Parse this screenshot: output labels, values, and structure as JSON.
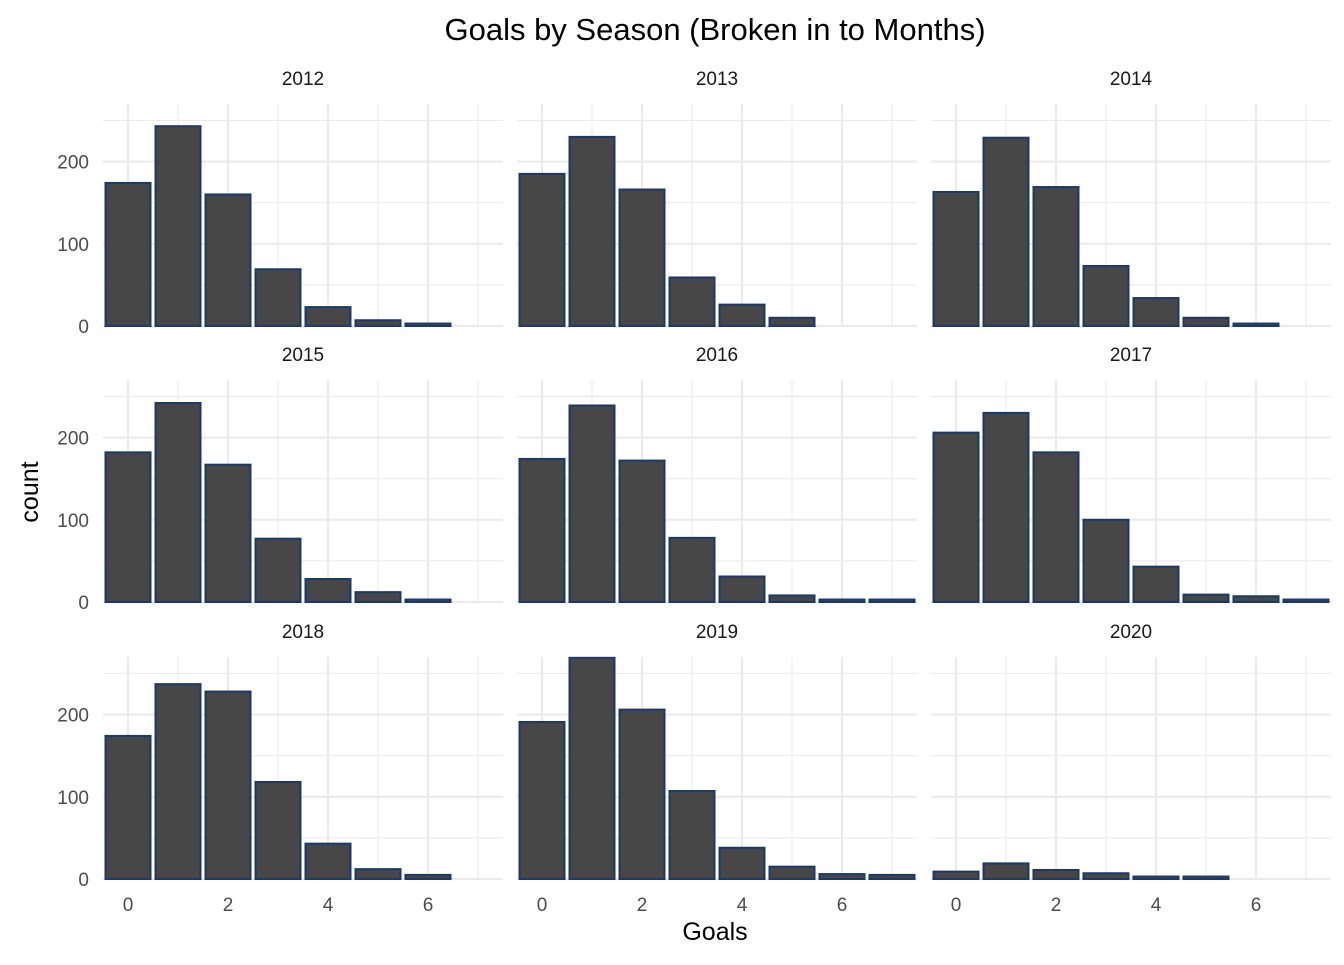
{
  "chart_data": {
    "type": "bar",
    "title": "Goals by Season (Broken in to Months)",
    "xlabel": "Goals",
    "ylabel": "count",
    "xlim": [
      -0.5,
      7.5
    ],
    "ylim": [
      0,
      270
    ],
    "x_ticks": [
      0,
      2,
      4,
      6
    ],
    "y_ticks": [
      0,
      100,
      200
    ],
    "grid": true,
    "legend": "none",
    "colors": {
      "bar_fill": "#474747",
      "bar_outline": "#1b3a6b",
      "grid": "#ebebeb",
      "background": "#ffffff"
    },
    "panels": [
      {
        "label": "2012",
        "x": [
          0,
          1,
          2,
          3,
          4,
          5,
          6
        ],
        "values": [
          174,
          243,
          160,
          69,
          23,
          7,
          3
        ]
      },
      {
        "label": "2013",
        "x": [
          0,
          1,
          2,
          3,
          4,
          5
        ],
        "values": [
          185,
          230,
          166,
          59,
          26,
          10
        ]
      },
      {
        "label": "2014",
        "x": [
          0,
          1,
          2,
          3,
          4,
          5,
          6
        ],
        "values": [
          163,
          229,
          169,
          73,
          34,
          10,
          3
        ]
      },
      {
        "label": "2015",
        "x": [
          0,
          1,
          2,
          3,
          4,
          5,
          6
        ],
        "values": [
          182,
          242,
          167,
          77,
          28,
          12,
          3
        ]
      },
      {
        "label": "2016",
        "x": [
          0,
          1,
          2,
          3,
          4,
          5,
          6,
          7
        ],
        "values": [
          174,
          239,
          172,
          78,
          31,
          8,
          3,
          3
        ]
      },
      {
        "label": "2017",
        "x": [
          0,
          1,
          2,
          3,
          4,
          5,
          6,
          7
        ],
        "values": [
          206,
          230,
          182,
          100,
          43,
          9,
          7,
          3
        ]
      },
      {
        "label": "2018",
        "x": [
          0,
          1,
          2,
          3,
          4,
          5,
          6
        ],
        "values": [
          174,
          237,
          228,
          118,
          43,
          12,
          5
        ]
      },
      {
        "label": "2019",
        "x": [
          0,
          1,
          2,
          3,
          4,
          5,
          6,
          7
        ],
        "values": [
          191,
          269,
          206,
          107,
          38,
          15,
          6,
          5
        ]
      },
      {
        "label": "2020",
        "x": [
          0,
          1,
          2,
          3,
          4,
          5
        ],
        "values": [
          9,
          19,
          11,
          7,
          3,
          3
        ]
      }
    ]
  }
}
